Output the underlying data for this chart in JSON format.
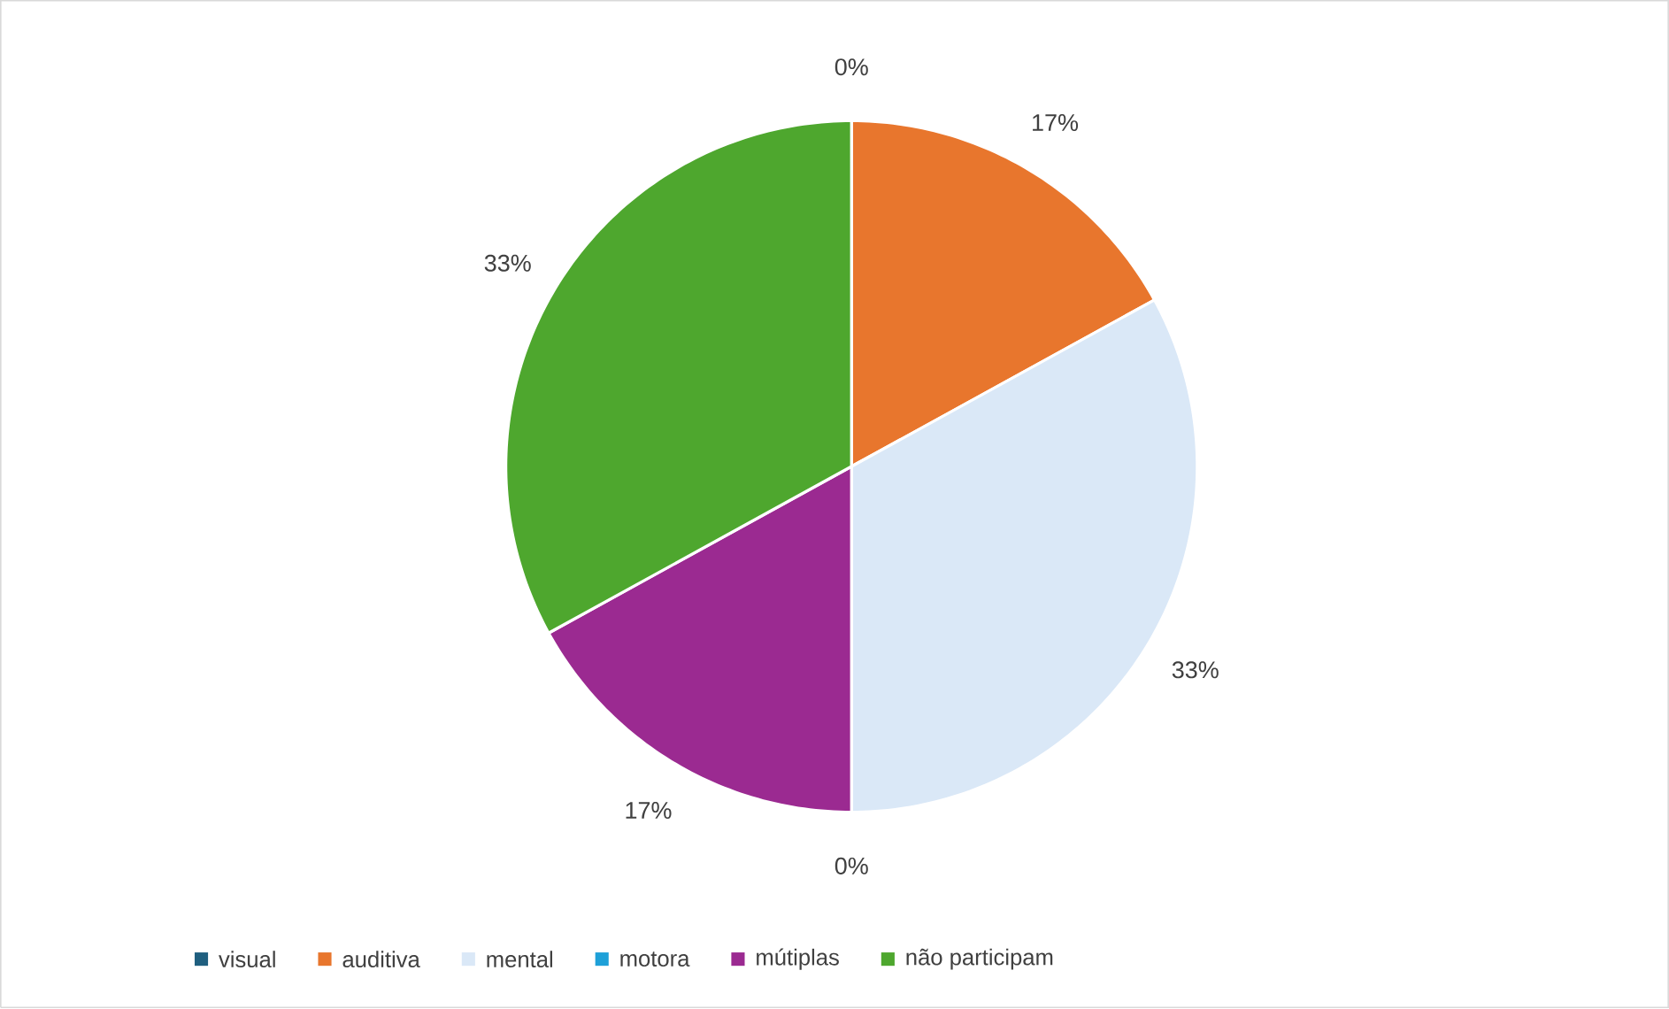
{
  "chart_data": {
    "type": "pie",
    "categories": [
      "visual",
      "auditiva",
      "mental",
      "motora",
      "mútiplas",
      "não participam"
    ],
    "values": [
      0,
      17,
      33,
      0,
      17,
      33
    ],
    "colors": [
      "#1f5f7f",
      "#e8762d",
      "#dae8f7",
      "#1ea0d8",
      "#9b2a91",
      "#4ea72e"
    ],
    "value_labels": [
      "0%",
      "17%",
      "33%",
      "0%",
      "17%",
      "33%"
    ],
    "legend": "bottom"
  }
}
